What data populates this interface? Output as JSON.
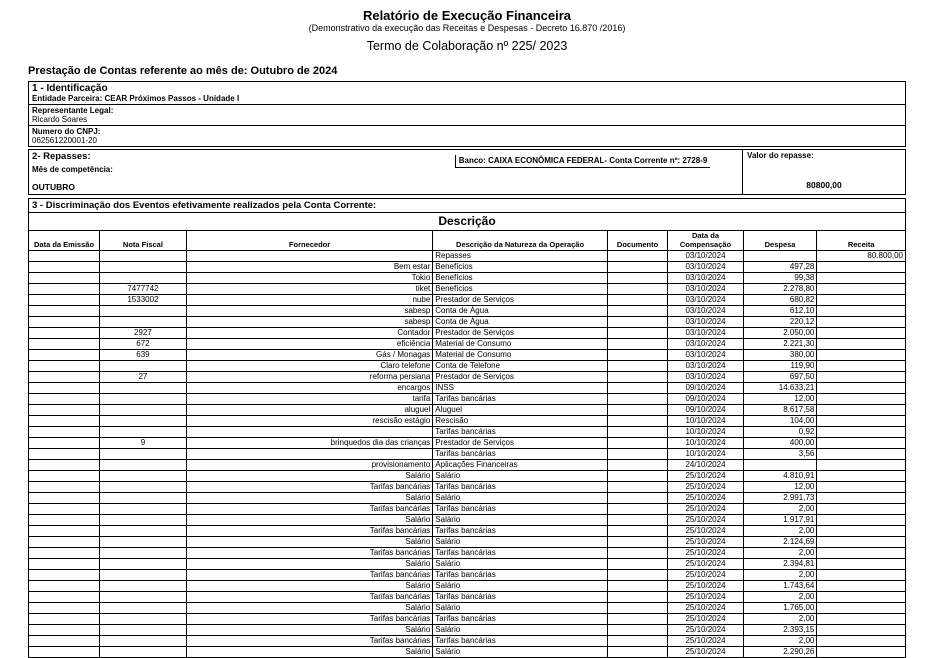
{
  "header": {
    "title": "Relatório de Execução Financeira",
    "subtitle": "(Demonstrativo da execução das Receitas e Despesas - Decreto 16.870 /2016)",
    "term": "Termo de Colaboração nº 225/ 2023",
    "period_line": "Prestação de Contas referente ao mês de: Outubro de 2024"
  },
  "identification": {
    "section_title": "1 - Identificação",
    "entity_line": "Entidade Parceira: CEAR Próximos Passos - Unidade I",
    "legal_rep_label": "Representante Legal:",
    "legal_rep_value": "Ricardo Soares",
    "cnpj_label": "Numero do CNPJ:",
    "cnpj_value": "062561220001-20"
  },
  "transfers": {
    "section_title": "2- Repasses:",
    "bank_line": "Banco: CAIXA ECONÔMICA FEDERAL-  Conta Corrente nº: 2728-9",
    "value_label": "Valor do repasse:",
    "month_label": "Mês de competência:",
    "month_value": "OUTUBRO",
    "value": "80800,00"
  },
  "events": {
    "section_title": "3 - Discriminação dos Eventos efetivamente realizados pela Conta Corrente:",
    "table_title": "Descrição",
    "columns": [
      "Data da Emissão",
      "Nota Fiscal",
      "Fornecedor",
      "Descrição da Natureza da Operação",
      "Documento",
      "Data da Compensação",
      "Despesa",
      "Receita"
    ],
    "rows": [
      [
        "",
        "",
        "",
        "Repasses",
        "",
        "03/10/2024",
        "",
        "80.800,00"
      ],
      [
        "",
        "",
        "Bem estar",
        "Benefícios",
        "",
        "03/10/2024",
        "497,28",
        ""
      ],
      [
        "",
        "",
        "Tokio",
        "Benefícios",
        "",
        "03/10/2024",
        "99,38",
        ""
      ],
      [
        "",
        "7477742",
        "tiket",
        "Benefícios",
        "",
        "03/10/2024",
        "2.278,80",
        ""
      ],
      [
        "",
        "1533002",
        "nube",
        "Prestador de Serviços",
        "",
        "03/10/2024",
        "680,82",
        ""
      ],
      [
        "",
        "",
        "sabesp",
        "Conta de Água",
        "",
        "03/10/2024",
        "612,10",
        ""
      ],
      [
        "",
        "",
        "sabesp",
        "Conta de Água",
        "",
        "03/10/2024",
        "220,12",
        ""
      ],
      [
        "",
        "2927",
        "Contador",
        "Prestador de Serviços",
        "",
        "03/10/2024",
        "2.050,00",
        ""
      ],
      [
        "",
        "672",
        "eficiência",
        "Material de Consumo",
        "",
        "03/10/2024",
        "2.221,30",
        ""
      ],
      [
        "",
        "639",
        "Gás / Monagas",
        "Material de Consumo",
        "",
        "03/10/2024",
        "380,00",
        ""
      ],
      [
        "",
        "",
        "Claro telefone",
        "Conta de Telefone",
        "",
        "03/10/2024",
        "119,90",
        ""
      ],
      [
        "",
        "27",
        "reforma persiana",
        "Prestador de Serviços",
        "",
        "03/10/2024",
        "697,50",
        ""
      ],
      [
        "",
        "",
        "encargos",
        "INSS",
        "",
        "09/10/2024",
        "14.633,21",
        ""
      ],
      [
        "",
        "",
        "tarifa",
        "Tarifas bancárias",
        "",
        "09/10/2024",
        "12,00",
        ""
      ],
      [
        "",
        "",
        "aluguel",
        "Aluguel",
        "",
        "09/10/2024",
        "8.617,58",
        ""
      ],
      [
        "",
        "",
        "rescisão estágio",
        "Rescisão",
        "",
        "10/10/2024",
        "104,00",
        ""
      ],
      [
        "",
        "",
        "",
        "Tarifas bancárias",
        "",
        "10/10/2024",
        "0,92",
        ""
      ],
      [
        "",
        "9",
        "brinquedos dia das crianças",
        "Prestador de Serviços",
        "",
        "10/10/2024",
        "400,00",
        ""
      ],
      [
        "",
        "",
        "",
        "Tarifas bancárias",
        "",
        "10/10/2024",
        "3,56",
        ""
      ],
      [
        "",
        "",
        "provisionamento",
        "Aplicações Financeiras",
        "",
        "24/10/2024",
        "",
        ""
      ],
      [
        "",
        "",
        "Salário",
        "Salário",
        "",
        "25/10/2024",
        "4.810,91",
        ""
      ],
      [
        "",
        "",
        "Tarifas bancárias",
        "Tarifas bancárias",
        "",
        "25/10/2024",
        "12,00",
        ""
      ],
      [
        "",
        "",
        "Salário",
        "Salário",
        "",
        "25/10/2024",
        "2.991,73",
        ""
      ],
      [
        "",
        "",
        "Tarifas bancárias",
        "Tarifas bancárias",
        "",
        "25/10/2024",
        "2,00",
        ""
      ],
      [
        "",
        "",
        "Salário",
        "Salário",
        "",
        "25/10/2024",
        "1.917,91",
        ""
      ],
      [
        "",
        "",
        "Tarifas bancárias",
        "Tarifas bancárias",
        "",
        "25/10/2024",
        "2,00",
        ""
      ],
      [
        "",
        "",
        "Salário",
        "Salário",
        "",
        "25/10/2024",
        "2.124,69",
        ""
      ],
      [
        "",
        "",
        "Tarifas bancárias",
        "Tarifas bancárias",
        "",
        "25/10/2024",
        "2,00",
        ""
      ],
      [
        "",
        "",
        "Salário",
        "Salário",
        "",
        "25/10/2024",
        "2.394,81",
        ""
      ],
      [
        "",
        "",
        "Tarifas bancárias",
        "Tarifas bancárias",
        "",
        "25/10/2024",
        "2,00",
        ""
      ],
      [
        "",
        "",
        "Salário",
        "Salário",
        "",
        "25/10/2024",
        "1.743,64",
        ""
      ],
      [
        "",
        "",
        "Tarifas bancárias",
        "Tarifas bancárias",
        "",
        "25/10/2024",
        "2,00",
        ""
      ],
      [
        "",
        "",
        "Salário",
        "Salário",
        "",
        "25/10/2024",
        "1.765,00",
        ""
      ],
      [
        "",
        "",
        "Tarifas bancárias",
        "Tarifas bancárias",
        "",
        "25/10/2024",
        "2,00",
        ""
      ],
      [
        "",
        "",
        "Salário",
        "Salário",
        "",
        "25/10/2024",
        "2.393,15",
        ""
      ],
      [
        "",
        "",
        "Tarifas bancárias",
        "Tarifas bancárias",
        "",
        "25/10/2024",
        "2,00",
        ""
      ],
      [
        "",
        "",
        "Salário",
        "Salário",
        "",
        "25/10/2024",
        "2.290,26",
        ""
      ]
    ]
  }
}
